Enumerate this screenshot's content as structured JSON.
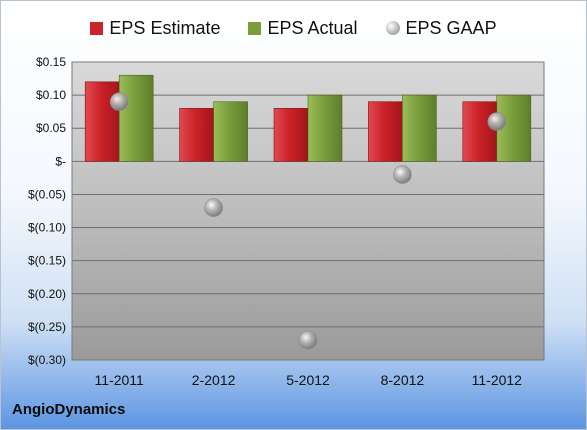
{
  "company": "AngioDynamics",
  "colors": {
    "estimate": "#cc2229",
    "actual": "#7a9e3c",
    "gaap": "#b7b7b7"
  },
  "chart_data": {
    "type": "bar",
    "categories": [
      "11-2011",
      "2-2012",
      "5-2012",
      "8-2012",
      "11-2012"
    ],
    "series": [
      {
        "name": "EPS Estimate",
        "values": [
          0.12,
          0.08,
          0.08,
          0.09,
          0.09
        ]
      },
      {
        "name": "EPS Actual",
        "values": [
          0.13,
          0.09,
          0.1,
          0.1,
          0.1
        ]
      },
      {
        "name": "EPS GAAP",
        "type": "scatter",
        "values": [
          0.09,
          -0.07,
          -0.27,
          -0.02,
          0.06
        ]
      }
    ],
    "ylim": [
      -0.3,
      0.15
    ],
    "yticks": [
      0.15,
      0.1,
      0.05,
      0,
      -0.05,
      -0.1,
      -0.15,
      -0.2,
      -0.25,
      -0.3
    ],
    "ytick_labels": [
      "$0.15",
      "$0.10",
      "$0.05",
      "$-",
      "$(0.05)",
      "$(0.10)",
      "$(0.15)",
      "$(0.20)",
      "$(0.25)",
      "$(0.30)"
    ],
    "grid": true,
    "legend_position": "top"
  }
}
